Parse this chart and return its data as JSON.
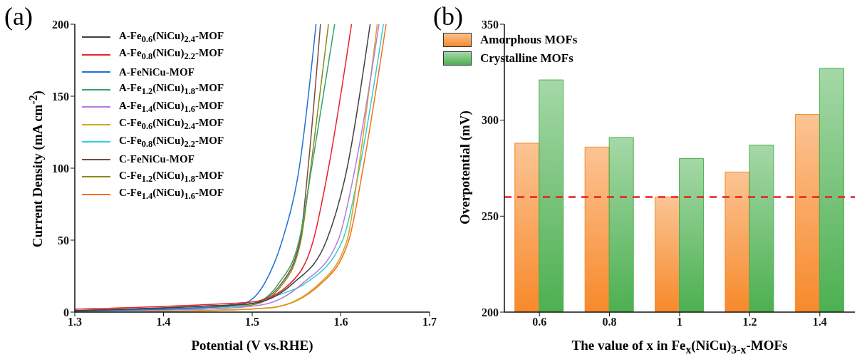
{
  "chart_data": [
    {
      "type": "line",
      "title": "(a)",
      "xlabel": "Potential (V vs.RHE)",
      "ylabel": "Current Density (mA cm$^{-2}$)",
      "xlim": [
        1.3,
        1.7
      ],
      "ylim": [
        0,
        200
      ],
      "xticks": [
        1.3,
        1.4,
        1.5,
        1.6,
        1.7
      ],
      "yticks": [
        0,
        50,
        100,
        150,
        200
      ],
      "legend": "top left",
      "series": [
        {
          "name": "A-Fe$_{0.6}$(NiCu)$_{2.4}$-MOF",
          "color": "#404040",
          "x": [
            1.3,
            1.44,
            1.5,
            1.546,
            1.584,
            1.607,
            1.633
          ],
          "values": [
            1,
            4,
            6,
            20,
            50,
            100,
            200
          ]
        },
        {
          "name": "A-Fe$_{0.8}$(NiCu)$_{2.2}$-MOF",
          "color": "#e8212a",
          "x": [
            1.3,
            1.44,
            1.5,
            1.543,
            1.569,
            1.586,
            1.612
          ],
          "values": [
            2,
            5,
            7,
            20,
            50,
            100,
            200
          ]
        },
        {
          "name": "A-FeNiCu-MOF",
          "color": "#1f6fd8",
          "x": [
            1.3,
            1.44,
            1.49,
            1.514,
            1.534,
            1.553,
            1.572
          ],
          "values": [
            1,
            3,
            6,
            20,
            50,
            100,
            200
          ]
        },
        {
          "name": "A-Fe$_{1.2}$(NiCu)$_{1.8}$-MOF",
          "color": "#2ea46a",
          "x": [
            1.3,
            1.44,
            1.5,
            1.53,
            1.553,
            1.567,
            1.593
          ],
          "values": [
            1,
            3,
            6,
            20,
            50,
            100,
            200
          ]
        },
        {
          "name": "A-Fe$_{1.4}$(NiCu)$_{1.6}$-MOF",
          "color": "#b07de0",
          "x": [
            1.3,
            1.44,
            1.51,
            1.557,
            1.597,
            1.616,
            1.643
          ],
          "values": [
            1,
            2,
            5,
            20,
            50,
            100,
            200
          ]
        },
        {
          "name": "C-Fe$_{0.6}$(NiCu)$_{2.4}$-MOF",
          "color": "#d9a21b",
          "x": [
            1.3,
            1.44,
            1.52,
            1.576,
            1.607,
            1.62,
            1.641
          ],
          "values": [
            0,
            1,
            3,
            20,
            50,
            100,
            200
          ]
        },
        {
          "name": "C-Fe$_{0.8}$(NiCu)$_{2.2}$-MOF",
          "color": "#2fcfcf",
          "x": [
            1.3,
            1.44,
            1.5,
            1.53,
            1.56,
            1.602,
            1.621,
            1.648
          ],
          "values": [
            1,
            2,
            6,
            12,
            20,
            50,
            100,
            200
          ]
        },
        {
          "name": "C-FeNiCu-MOF",
          "color": "#7a4a40",
          "x": [
            1.3,
            1.44,
            1.5,
            1.533,
            1.554,
            1.563,
            1.577
          ],
          "values": [
            1,
            4,
            6,
            20,
            50,
            100,
            200
          ]
        },
        {
          "name": "C-Fe$_{1.2}$(NiCu)$_{1.8}$-MOF",
          "color": "#8a8a10",
          "x": [
            1.3,
            1.44,
            1.5,
            1.535,
            1.555,
            1.566,
            1.586
          ],
          "values": [
            1,
            3,
            5,
            20,
            50,
            100,
            200
          ]
        },
        {
          "name": "C-Fe$_{1.4}$(NiCu)$_{1.6}$-MOF",
          "color": "#f07020",
          "x": [
            1.3,
            1.44,
            1.52,
            1.578,
            1.609,
            1.625,
            1.651
          ],
          "values": [
            0,
            1,
            3,
            20,
            50,
            100,
            200
          ]
        }
      ]
    },
    {
      "type": "bar",
      "title": "(b)",
      "xlabel": "The value of x in Fe$_{x}$(NiCu)$_{3-x}$-MOFs",
      "ylabel": "Overpotential (mV)",
      "categories": [
        "0.6",
        "0.8",
        "1",
        "1.2",
        "1.4"
      ],
      "ylim": [
        200,
        350
      ],
      "yticks": [
        200,
        250,
        300,
        350
      ],
      "legend": "top left",
      "series": [
        {
          "name": "Amorphous MOFs",
          "color": "#f7892a",
          "values": [
            288,
            286,
            260,
            273,
            303
          ]
        },
        {
          "name": "Crystalline MOFs",
          "color": "#4cb050",
          "values": [
            321,
            291,
            280,
            287,
            327
          ]
        }
      ],
      "ref_lines": [
        {
          "axis": "y",
          "value": 260,
          "color": "#e82020",
          "line_style": "dashed"
        }
      ]
    }
  ]
}
